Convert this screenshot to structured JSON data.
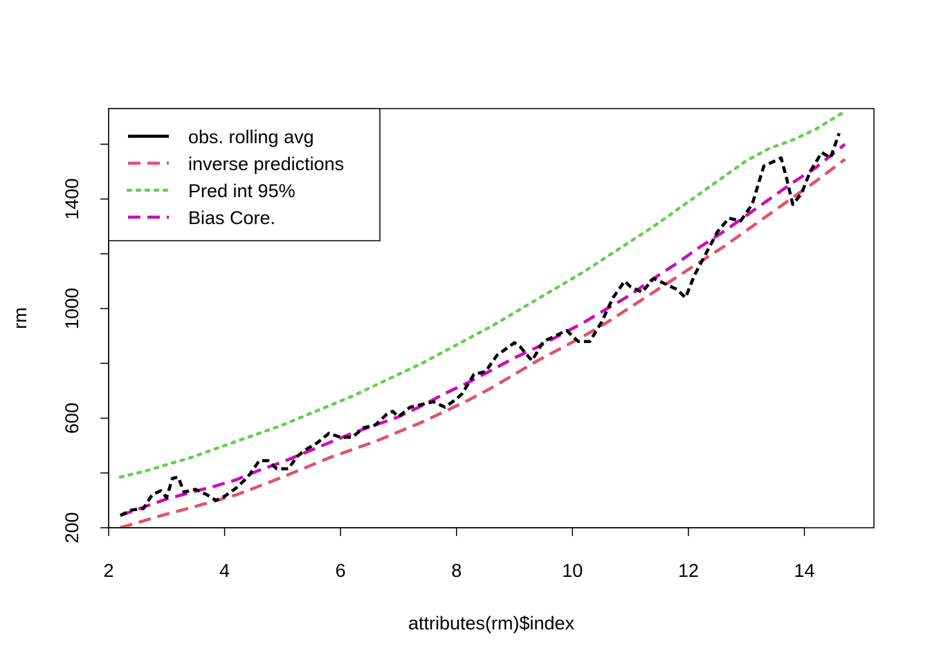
{
  "chart_data": {
    "type": "line",
    "xlabel": "attributes(rm)$index",
    "ylabel": "rm",
    "xlim": [
      2.0,
      15.2
    ],
    "ylim": [
      200,
      1730
    ],
    "x_ticks": [
      2,
      4,
      6,
      8,
      10,
      12,
      14
    ],
    "y_ticks": [
      200,
      600,
      1000,
      1400
    ],
    "y_minor_ticks": [
      400,
      800,
      1200,
      1600
    ],
    "grid": false,
    "legend_position": "top-left",
    "series": [
      {
        "name": "obs. rolling avg",
        "color": "#000000",
        "style": "solid",
        "x": [
          2.2,
          2.4,
          2.6,
          2.75,
          2.9,
          3.0,
          3.1,
          3.2,
          3.3,
          3.5,
          3.7,
          3.85,
          4.0,
          4.2,
          4.4,
          4.6,
          4.75,
          4.9,
          5.1,
          5.25,
          5.4,
          5.6,
          5.8,
          6.0,
          6.2,
          6.4,
          6.6,
          6.8,
          6.9,
          7.0,
          7.2,
          7.4,
          7.6,
          7.7,
          7.8,
          8.0,
          8.1,
          8.3,
          8.5,
          8.7,
          8.9,
          9.0,
          9.1,
          9.3,
          9.5,
          9.7,
          9.9,
          10.1,
          10.3,
          10.5,
          10.7,
          10.9,
          11.0,
          11.2,
          11.4,
          11.6,
          11.8,
          11.95,
          12.1,
          12.3,
          12.5,
          12.7,
          12.9,
          13.1,
          13.3,
          13.5,
          13.6,
          13.7,
          13.8,
          13.95,
          14.1,
          14.3,
          14.45,
          14.6
        ],
        "y": [
          245,
          265,
          270,
          320,
          335,
          310,
          380,
          385,
          330,
          340,
          320,
          300,
          315,
          345,
          385,
          445,
          445,
          415,
          415,
          460,
          485,
          510,
          545,
          530,
          530,
          565,
          575,
          615,
          625,
          605,
          640,
          650,
          660,
          650,
          640,
          670,
          690,
          760,
          770,
          830,
          860,
          875,
          860,
          810,
          880,
          900,
          920,
          880,
          880,
          950,
          1040,
          1100,
          1080,
          1060,
          1110,
          1090,
          1070,
          1040,
          1120,
          1200,
          1280,
          1330,
          1320,
          1380,
          1520,
          1540,
          1550,
          1470,
          1380,
          1420,
          1500,
          1570,
          1550,
          1640
        ]
      },
      {
        "name": "inverse predictions",
        "color": "#df536b",
        "style": "dashed",
        "x": [
          2.2,
          2.6,
          3.0,
          3.4,
          3.8,
          4.2,
          4.6,
          5.0,
          5.4,
          5.8,
          6.2,
          6.6,
          7.0,
          7.4,
          7.8,
          8.2,
          8.6,
          9.0,
          9.4,
          9.8,
          10.2,
          10.6,
          11.0,
          11.4,
          11.8,
          12.2,
          12.6,
          13.0,
          13.4,
          13.8,
          14.2,
          14.7
        ],
        "y": [
          200,
          225,
          250,
          272,
          296,
          320,
          352,
          385,
          420,
          455,
          485,
          515,
          550,
          585,
          625,
          665,
          710,
          760,
          810,
          855,
          900,
          950,
          1005,
          1060,
          1115,
          1170,
          1225,
          1285,
          1345,
          1405,
          1465,
          1545
        ]
      },
      {
        "name": "Pred int 95%",
        "color": "#61d04f",
        "style": "dotted",
        "x": [
          2.2,
          2.6,
          3.0,
          3.4,
          3.8,
          4.2,
          4.6,
          5.0,
          5.4,
          5.8,
          6.2,
          6.6,
          7.0,
          7.4,
          7.8,
          8.2,
          8.6,
          9.0,
          9.4,
          9.8,
          10.2,
          10.6,
          11.0,
          11.4,
          11.8,
          12.2,
          12.6,
          13.0,
          13.4,
          13.8,
          14.2,
          14.7
        ],
        "y": [
          385,
          405,
          430,
          455,
          485,
          515,
          545,
          575,
          610,
          645,
          680,
          720,
          760,
          800,
          845,
          890,
          935,
          985,
          1035,
          1085,
          1135,
          1190,
          1245,
          1300,
          1360,
          1420,
          1480,
          1540,
          1585,
          1615,
          1655,
          1720
        ]
      },
      {
        "name": "Bias Core.",
        "color": "#cd0bbc",
        "style": "dashed",
        "x": [
          2.2,
          2.6,
          3.0,
          3.4,
          3.8,
          4.2,
          4.6,
          5.0,
          5.4,
          5.8,
          6.2,
          6.6,
          7.0,
          7.4,
          7.8,
          8.2,
          8.6,
          9.0,
          9.4,
          9.8,
          10.2,
          10.6,
          11.0,
          11.4,
          11.8,
          12.2,
          12.6,
          13.0,
          13.4,
          13.8,
          14.2,
          14.7
        ],
        "y": [
          245,
          275,
          305,
          328,
          350,
          375,
          410,
          440,
          475,
          510,
          545,
          575,
          605,
          645,
          690,
          730,
          775,
          820,
          860,
          905,
          950,
          1000,
          1050,
          1110,
          1165,
          1225,
          1280,
          1340,
          1400,
          1460,
          1515,
          1600
        ]
      }
    ]
  }
}
